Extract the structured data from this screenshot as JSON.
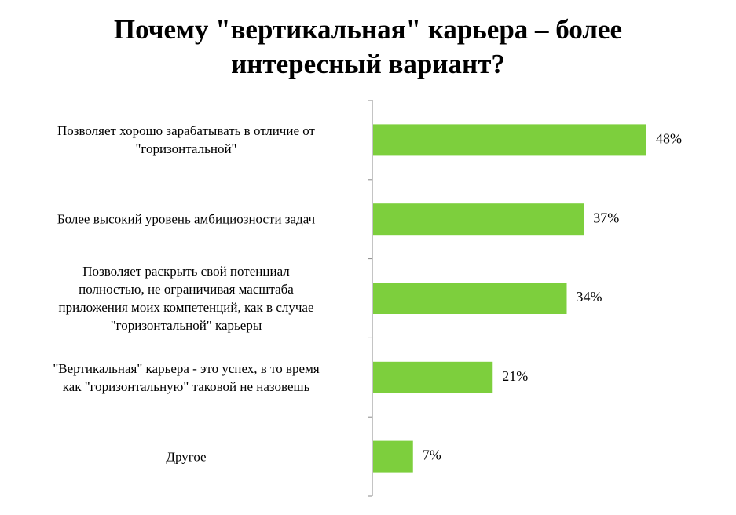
{
  "chart_data": {
    "type": "barh",
    "title": "Почему \"вертикальная\" карьера – более\nинтересный вариант?",
    "categories": [
      "Позволяет хорошо зарабатывать в отличие от\n\"горизонтальной\"",
      "Более высокий уровень амбициозности задач",
      "Позволяет раскрыть свой потенциал\nполностью, не ограничивая масштаба\nприложения моих компетенций, как в случае\n\"горизонтальной\" карьеры",
      "\"Вертикальная\" карьера - это успех, в то время\nкак \"горизонтальную\" таковой не назовешь",
      "Другое"
    ],
    "values": [
      48,
      37,
      34,
      21,
      7
    ],
    "value_labels": [
      "48%",
      "37%",
      "34%",
      "21%",
      "7%"
    ],
    "color": "#7dcf3d",
    "xlim": [
      0,
      60
    ]
  }
}
